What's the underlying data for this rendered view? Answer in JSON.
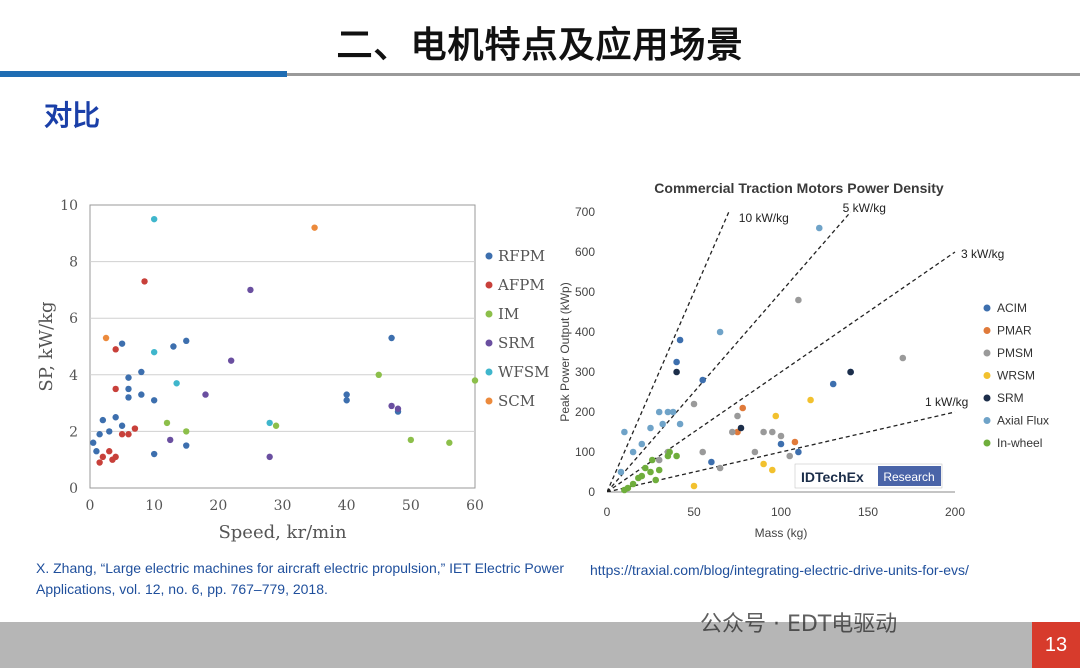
{
  "slide": {
    "title": "二、电机特点及应用场景",
    "subtitle": "对比",
    "page_number": "13",
    "watermark": "公众号 · EDT电驱动",
    "citation_left": "X. Zhang, “Large electric machines for aircraft electric propulsion,” IET Electric Power Applications, vol. 12, no. 6, pp. 767–779, 2018.",
    "citation_right": "https://traxial.com/blog/integrating-electric-drive-units-for-evs/"
  },
  "chart_data": [
    {
      "type": "scatter",
      "title": "",
      "xlabel": "Speed, kr/min",
      "ylabel": "SP, kW/kg",
      "xlim": [
        0,
        60
      ],
      "ylim": [
        0,
        10
      ],
      "xticks": [
        "0",
        "10",
        "20",
        "30",
        "40",
        "50",
        "60"
      ],
      "yticks": [
        "0",
        "2",
        "4",
        "6",
        "8",
        "10"
      ],
      "grid": "horizontal",
      "legend": "right",
      "series": [
        {
          "name": "RFPM",
          "color": "#3d6fae",
          "points": [
            [
              0.5,
              1.6
            ],
            [
              1,
              1.3
            ],
            [
              1.5,
              1.9
            ],
            [
              2,
              2.4
            ],
            [
              3,
              2.0
            ],
            [
              4,
              2.5
            ],
            [
              5,
              2.2
            ],
            [
              5,
              5.1
            ],
            [
              6,
              3.9
            ],
            [
              6,
              3.5
            ],
            [
              6,
              3.2
            ],
            [
              8,
              4.1
            ],
            [
              8,
              3.3
            ],
            [
              10,
              3.1
            ],
            [
              10,
              1.2
            ],
            [
              13,
              5.0
            ],
            [
              15,
              5.2
            ],
            [
              15,
              1.5
            ],
            [
              40,
              3.3
            ],
            [
              40,
              3.1
            ],
            [
              47,
              5.3
            ],
            [
              48,
              2.7
            ]
          ]
        },
        {
          "name": "AFPM",
          "color": "#c8403a",
          "points": [
            [
              1.5,
              0.9
            ],
            [
              2,
              1.1
            ],
            [
              3,
              1.3
            ],
            [
              3.5,
              1.0
            ],
            [
              4,
              1.1
            ],
            [
              4,
              3.5
            ],
            [
              4,
              4.9
            ],
            [
              5,
              1.9
            ],
            [
              6,
              1.9
            ],
            [
              7,
              2.1
            ],
            [
              8.5,
              7.3
            ]
          ]
        },
        {
          "name": "IM",
          "color": "#8cbf4a",
          "points": [
            [
              12,
              2.3
            ],
            [
              15,
              2.0
            ],
            [
              29,
              2.2
            ],
            [
              45,
              4.0
            ],
            [
              50,
              1.7
            ],
            [
              56,
              1.6
            ],
            [
              60,
              3.8
            ]
          ]
        },
        {
          "name": "SRM",
          "color": "#6a4fa0",
          "points": [
            [
              12.5,
              1.7
            ],
            [
              18,
              3.3
            ],
            [
              22,
              4.5
            ],
            [
              25,
              7.0
            ],
            [
              28,
              1.1
            ],
            [
              47,
              2.9
            ],
            [
              48,
              2.8
            ]
          ]
        },
        {
          "name": "WFSM",
          "color": "#3fb6cc",
          "points": [
            [
              10,
              9.5
            ],
            [
              10,
              4.8
            ],
            [
              13.5,
              3.7
            ],
            [
              28,
              2.3
            ]
          ]
        },
        {
          "name": "SCM",
          "color": "#ec8a3c",
          "points": [
            [
              2.5,
              5.3
            ],
            [
              35,
              9.2
            ]
          ]
        }
      ]
    },
    {
      "type": "scatter",
      "title": "Commercial Traction Motors Power Density",
      "xlabel": "Mass (kg)",
      "ylabel": "Peak Power Output (kWp)",
      "xlim": [
        0,
        200
      ],
      "ylim": [
        0,
        700
      ],
      "xticks": [
        "0",
        "50",
        "100",
        "150",
        "200"
      ],
      "yticks": [
        "0",
        "100",
        "200",
        "300",
        "400",
        "500",
        "600",
        "700"
      ],
      "grid": "none",
      "legend": "right",
      "brand": "IDTechEx",
      "brand_tag": "Research",
      "reference_lines": [
        {
          "label": "10 kW/kg",
          "slope": 10
        },
        {
          "label": "5 kW/kg",
          "slope": 5
        },
        {
          "label": "3 kW/kg",
          "slope": 3
        },
        {
          "label": "1 kW/kg",
          "slope": 1
        }
      ],
      "series": [
        {
          "name": "ACIM",
          "color": "#3d6fae",
          "points": [
            [
              40,
              325
            ],
            [
              42,
              380
            ],
            [
              55,
              280
            ],
            [
              60,
              75
            ],
            [
              100,
              120
            ],
            [
              110,
              100
            ],
            [
              130,
              270
            ],
            [
              140,
              300
            ]
          ]
        },
        {
          "name": "PMAR",
          "color": "#e07a3a",
          "points": [
            [
              75,
              150
            ],
            [
              78,
              210
            ],
            [
              108,
              125
            ],
            [
              120,
              60
            ]
          ]
        },
        {
          "name": "PMSM",
          "color": "#9a9a9a",
          "points": [
            [
              30,
              80
            ],
            [
              35,
              100
            ],
            [
              50,
              220
            ],
            [
              55,
              100
            ],
            [
              65,
              60
            ],
            [
              72,
              150
            ],
            [
              75,
              190
            ],
            [
              85,
              100
            ],
            [
              90,
              150
            ],
            [
              95,
              150
            ],
            [
              100,
              140
            ],
            [
              105,
              90
            ],
            [
              110,
              480
            ],
            [
              170,
              335
            ]
          ]
        },
        {
          "name": "WRSM",
          "color": "#f2c12e",
          "points": [
            [
              50,
              15
            ],
            [
              90,
              70
            ],
            [
              95,
              55
            ],
            [
              97,
              190
            ],
            [
              117,
              230
            ]
          ]
        },
        {
          "name": "SRM",
          "color": "#1c2e4a",
          "points": [
            [
              40,
              300
            ],
            [
              77,
              160
            ],
            [
              140,
              300
            ]
          ]
        },
        {
          "name": "Axial Flux",
          "color": "#6fa3c8",
          "points": [
            [
              8,
              50
            ],
            [
              10,
              150
            ],
            [
              15,
              100
            ],
            [
              20,
              120
            ],
            [
              25,
              160
            ],
            [
              30,
              200
            ],
            [
              32,
              170
            ],
            [
              35,
              200
            ],
            [
              38,
              200
            ],
            [
              42,
              170
            ],
            [
              65,
              400
            ],
            [
              122,
              660
            ]
          ]
        },
        {
          "name": "In-wheel",
          "color": "#6fae3c",
          "points": [
            [
              10,
              5
            ],
            [
              12,
              10
            ],
            [
              15,
              20
            ],
            [
              18,
              35
            ],
            [
              20,
              40
            ],
            [
              22,
              60
            ],
            [
              25,
              50
            ],
            [
              26,
              80
            ],
            [
              28,
              30
            ],
            [
              30,
              55
            ],
            [
              35,
              90
            ],
            [
              36,
              100
            ],
            [
              40,
              90
            ]
          ]
        }
      ]
    }
  ]
}
